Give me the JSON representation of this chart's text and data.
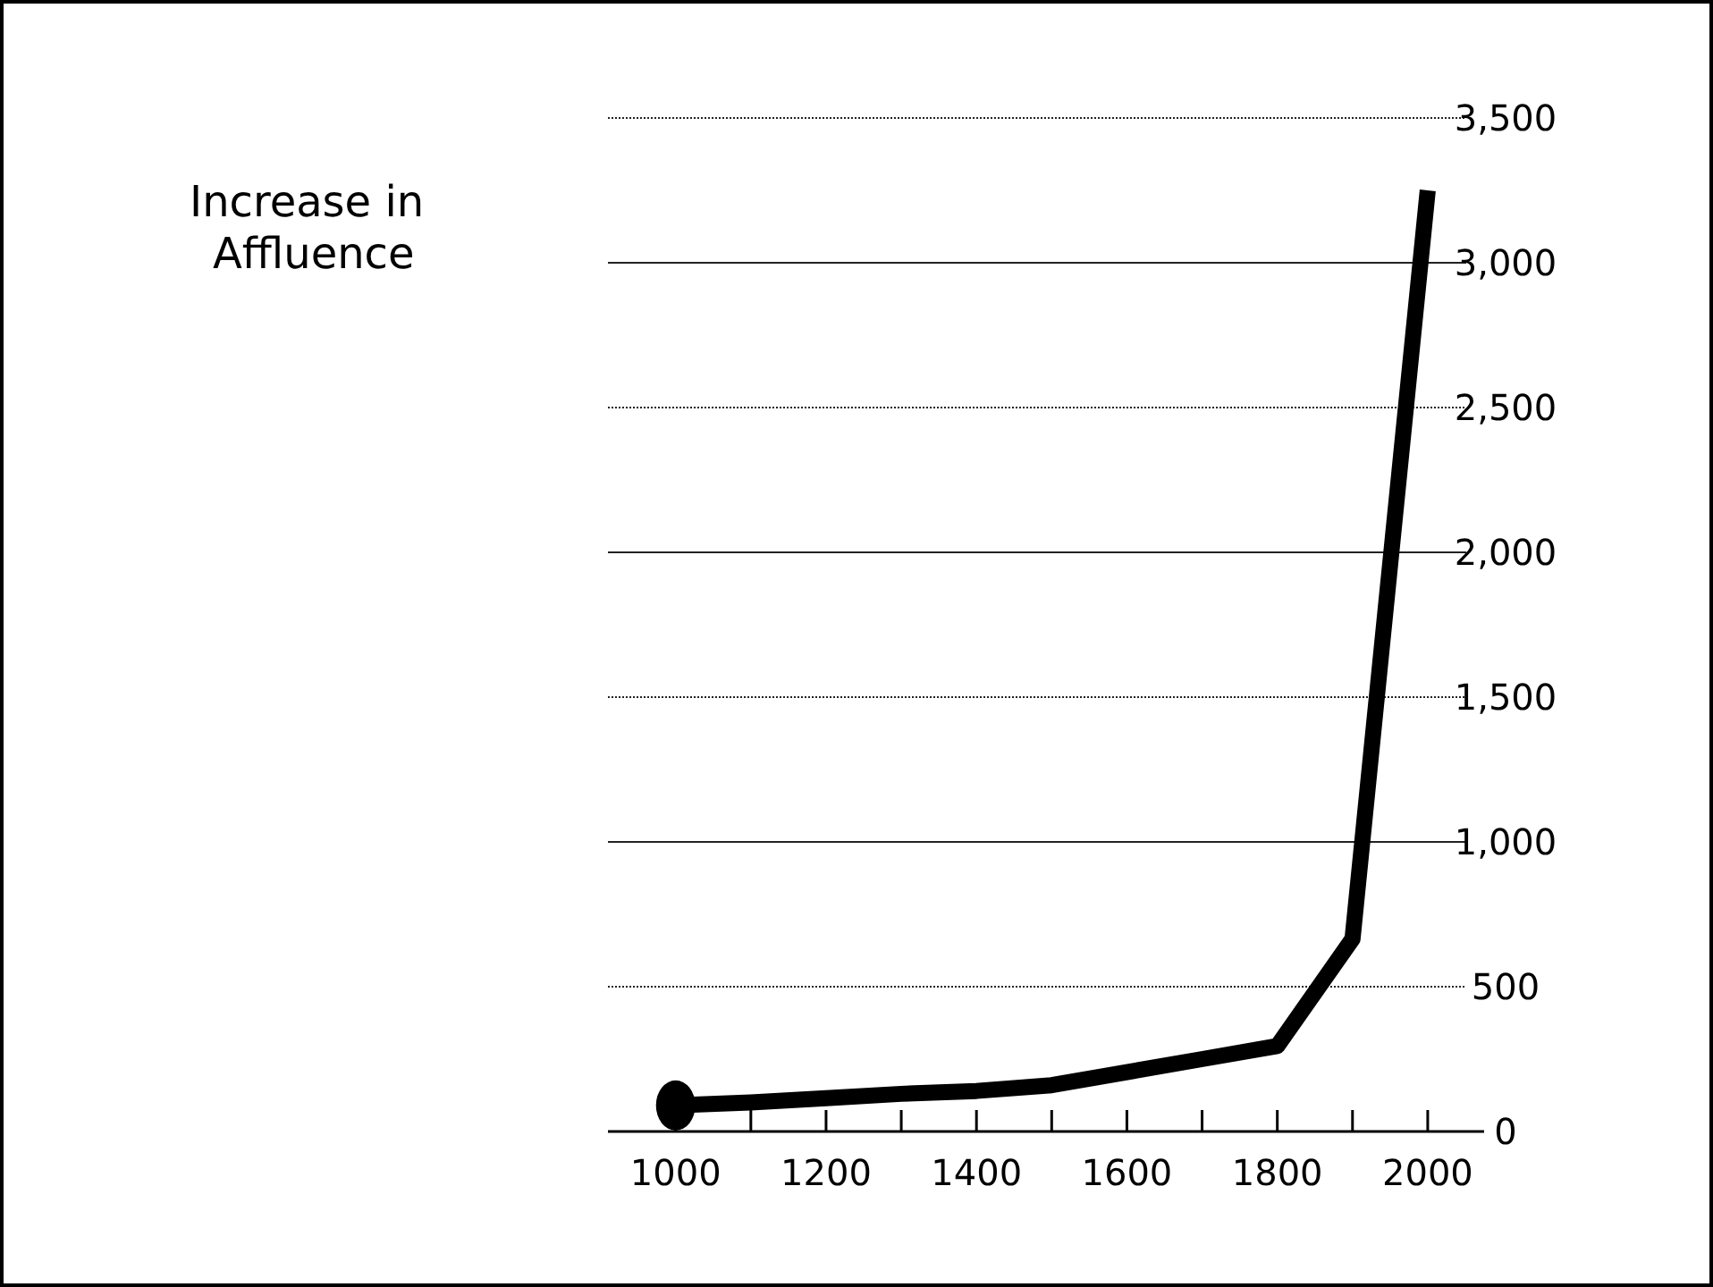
{
  "chart_data": {
    "type": "line",
    "title": "Increase in Affluence",
    "xlim": [
      910,
      2075
    ],
    "xticks": [
      1000,
      {
        "value": 1100,
        "label": null
      },
      1200,
      {
        "value": 1300,
        "label": null
      },
      1400,
      {
        "value": 1500,
        "label": null
      },
      1600,
      {
        "value": 1700,
        "label": null
      },
      1800,
      {
        "value": 1900,
        "label": null
      },
      2000
    ],
    "ylim": [
      0,
      3500
    ],
    "yticks": [
      0,
      500,
      {
        "value": 1000,
        "label": "1,000"
      },
      {
        "value": 1500,
        "label": "1,500"
      },
      {
        "value": 2000,
        "label": "2,000"
      },
      {
        "value": 2500,
        "label": "2,500"
      },
      {
        "value": 3000,
        "label": "3,000"
      },
      {
        "value": 3500,
        "label": "3,500"
      }
    ],
    "grid": "y",
    "series": [
      {
        "color": "#000000",
        "x": [
          1000,
          1100,
          1200,
          1300,
          1400,
          1500,
          1600,
          1700,
          1800,
          1900,
          2000
        ],
        "values": [
          90,
          100,
          115,
          130,
          140,
          160,
          205,
          250,
          295,
          665,
          3250
        ]
      },
      {
        "type": "scatter",
        "marker": "circle",
        "color": "#000000",
        "x": [
          1000
        ],
        "values": [
          90
        ]
      }
    ]
  }
}
